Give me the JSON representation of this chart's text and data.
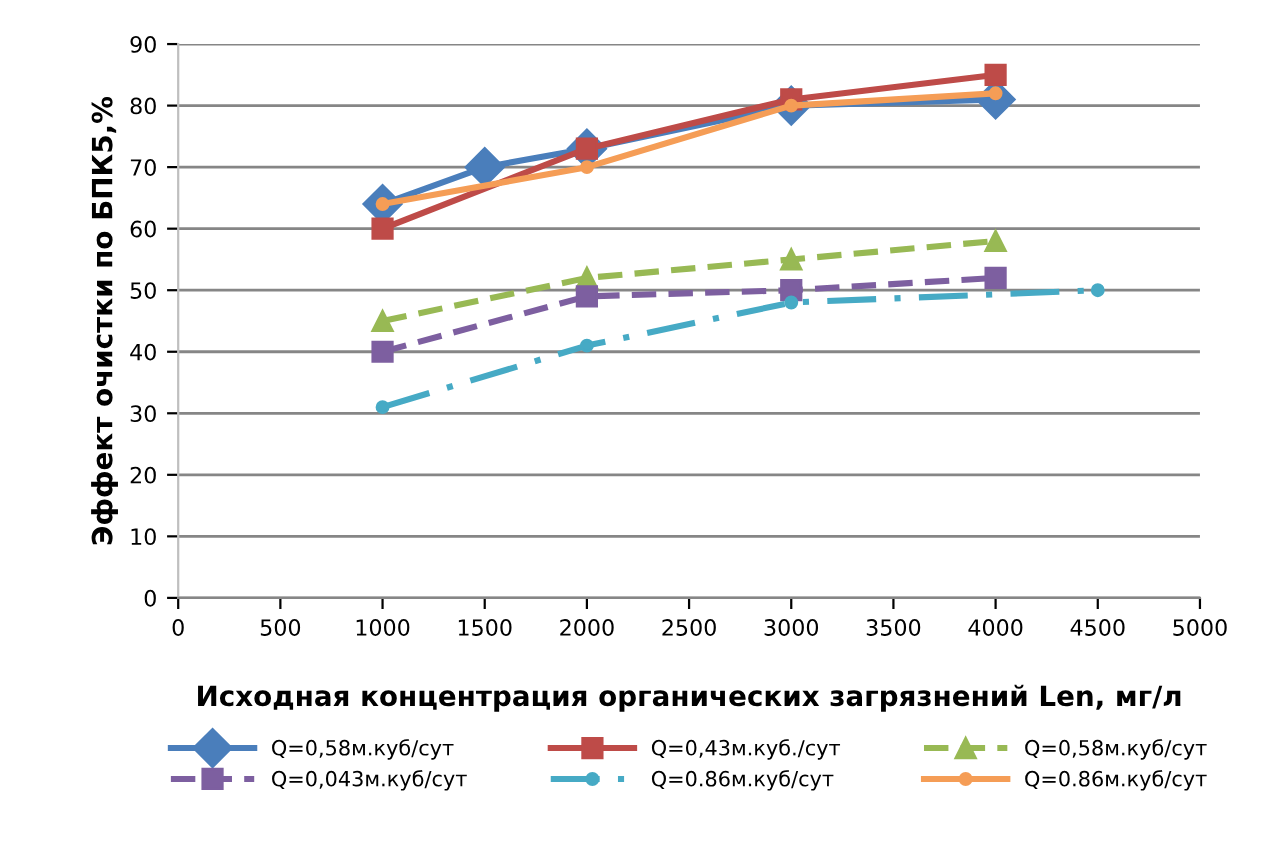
{
  "chart_data": {
    "type": "line",
    "xlabel": "Исходная концентрация органических загрязнений Len, мг/л",
    "ylabel": "Эффект очистки по БПК5,%",
    "xlim": [
      0,
      5000
    ],
    "xticks": [
      0,
      500,
      1000,
      1500,
      2000,
      2500,
      3000,
      3500,
      4000,
      4500,
      5000
    ],
    "ylim": [
      0,
      90
    ],
    "yticks": [
      0,
      10,
      20,
      30,
      40,
      50,
      60,
      70,
      80,
      90
    ],
    "grid": "y",
    "legend": "bottom",
    "series": [
      {
        "name": "Q=0,58м.куб/сут",
        "color": "#4a7ebb",
        "marker": "diamond",
        "line_style": "solid",
        "x": [
          1000,
          1500,
          2000,
          3000,
          4000
        ],
        "values": [
          64,
          70,
          73,
          80,
          81
        ]
      },
      {
        "name": "Q=0,43м.куб./сут",
        "color": "#be4b48",
        "marker": "square",
        "line_style": "solid",
        "x": [
          1000,
          2000,
          3000,
          4000
        ],
        "values": [
          60,
          73,
          81,
          85
        ]
      },
      {
        "name": "Q=0,58м.куб/сут",
        "color": "#98b954",
        "marker": "triangle",
        "line_style": "dashed",
        "x": [
          1000,
          2000,
          3000,
          4000
        ],
        "values": [
          45,
          52,
          55,
          58
        ]
      },
      {
        "name": "Q=0,043м.куб/сут",
        "color": "#7d5fa0",
        "marker": "square",
        "line_style": "dashed",
        "x": [
          1000,
          2000,
          3000,
          4000
        ],
        "values": [
          40,
          49,
          50,
          52
        ]
      },
      {
        "name": "Q=0.86м.куб/сут",
        "color": "#46aac5",
        "marker": "circle",
        "line_style": "dashdot",
        "x": [
          1000,
          2000,
          3000,
          4500
        ],
        "values": [
          31,
          41,
          48,
          50
        ]
      },
      {
        "name": "Q=0.86м.куб/сут",
        "color": "#f59d56",
        "marker": "circle",
        "line_style": "solid",
        "x": [
          1000,
          2000,
          3000,
          4000
        ],
        "values": [
          64,
          70,
          80,
          82
        ]
      }
    ]
  }
}
